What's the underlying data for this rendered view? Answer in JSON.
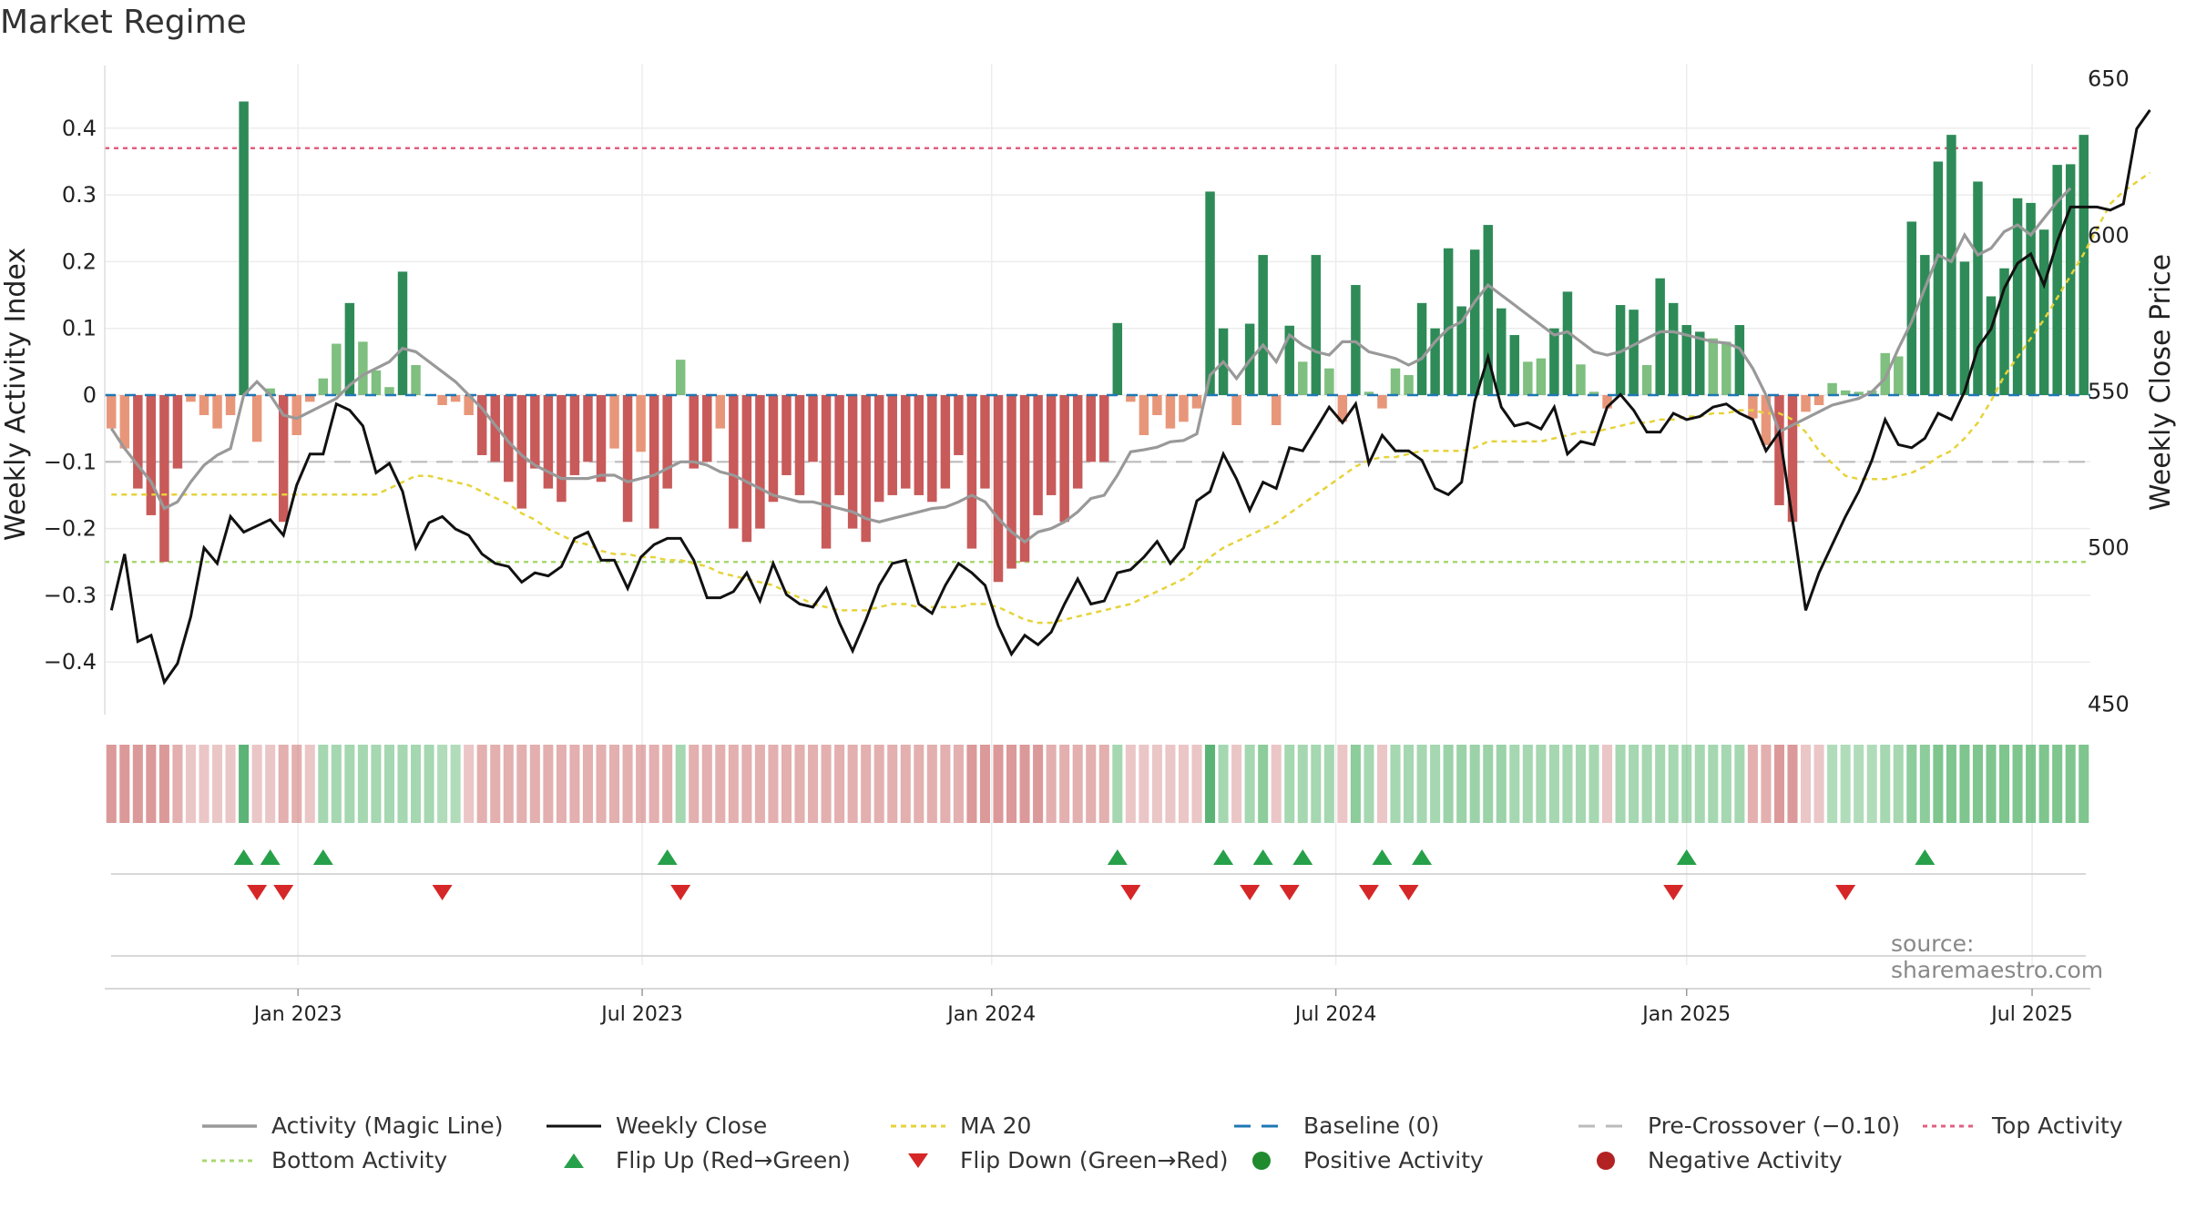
{
  "title": "Market Regime",
  "source": "source: sharemaestro.com",
  "colors": {
    "strong_green": "#2e8b57",
    "light_green": "#7fbf7f",
    "strong_red": "#c85a5a",
    "light_red": "#e8967a",
    "activity_line": "#999999",
    "close_line": "#111111",
    "ma20": "#e6d33a",
    "baseline": "#1f77b4",
    "pre_crossover": "#bbbbbb",
    "top_activity": "#e06080",
    "bottom_activity": "#a8d870",
    "flip_up": "#27a04a",
    "flip_down": "#d62728"
  },
  "chart_data": {
    "type": "bar",
    "ylabel_left": "Weekly Activity Index",
    "ylabel_right": "Weekly Close Price",
    "ylim_left": [
      -0.48,
      0.48
    ],
    "ylim_right": [
      450,
      650
    ],
    "yticks_left": [
      "0.4",
      "0.3",
      "0.2",
      "0.1",
      "0",
      "−0.1",
      "−0.2",
      "−0.3",
      "−0.4"
    ],
    "yticks_left_values": [
      0.4,
      0.3,
      0.2,
      0.1,
      0,
      -0.1,
      -0.2,
      -0.3,
      -0.4
    ],
    "yticks_right": [
      "650",
      "600",
      "550",
      "500",
      "450"
    ],
    "yticks_right_values": [
      650,
      600,
      550,
      500,
      450
    ],
    "xticks": [
      "Jan 2023",
      "Jul 2023",
      "Jan 2024",
      "Jul 2024",
      "Jan 2025",
      "Jul 2025"
    ],
    "xticks_week_index": [
      14.6,
      40.6,
      67,
      93,
      119.5,
      145.6
    ],
    "thresholds": {
      "top_activity": 0.37,
      "bottom_activity": -0.25,
      "pre_crossover": -0.1,
      "baseline": 0
    },
    "activity": [
      -0.05,
      -0.08,
      -0.14,
      -0.18,
      -0.25,
      -0.11,
      -0.01,
      -0.03,
      -0.05,
      -0.03,
      0.44,
      -0.07,
      0.01,
      -0.19,
      -0.06,
      -0.01,
      0.025,
      0.077,
      0.138,
      0.08,
      0.037,
      0.012,
      0.185,
      0.045,
      0.0,
      -0.015,
      -0.01,
      -0.03,
      -0.09,
      -0.1,
      -0.13,
      -0.17,
      -0.11,
      -0.14,
      -0.16,
      -0.12,
      -0.1,
      -0.13,
      -0.08,
      -0.19,
      -0.085,
      -0.2,
      -0.14,
      0.053,
      -0.11,
      -0.1,
      -0.05,
      -0.2,
      -0.22,
      -0.2,
      -0.16,
      -0.12,
      -0.15,
      -0.1,
      -0.23,
      -0.15,
      -0.2,
      -0.22,
      -0.16,
      -0.15,
      -0.14,
      -0.15,
      -0.16,
      -0.14,
      -0.09,
      -0.23,
      -0.14,
      -0.28,
      -0.26,
      -0.25,
      -0.18,
      -0.15,
      -0.19,
      -0.14,
      -0.1,
      -0.1,
      0.108,
      -0.01,
      -0.06,
      -0.03,
      -0.05,
      -0.04,
      -0.02,
      0.305,
      0.1,
      -0.045,
      0.107,
      0.21,
      -0.045,
      0.104,
      0.05,
      0.21,
      0.04,
      -0.04,
      0.165,
      0.005,
      -0.02,
      0.04,
      0.03,
      0.138,
      0.1,
      0.22,
      0.133,
      0.218,
      0.255,
      0.13,
      0.09,
      0.05,
      0.055,
      0.1,
      0.155,
      0.046,
      0.005,
      -0.02,
      0.135,
      0.128,
      0.045,
      0.175,
      0.138,
      0.105,
      0.095,
      0.085,
      0.08,
      0.105,
      -0.035,
      -0.075,
      -0.165,
      -0.19,
      -0.025,
      -0.015,
      0.018,
      0.007,
      0.005,
      0.007,
      0.063,
      0.058,
      0.26,
      0.21,
      0.35,
      0.39,
      0.2,
      0.32,
      0.148,
      0.19,
      0.295,
      0.288,
      0.248,
      0.345,
      0.346,
      0.39
    ],
    "activity_line": [
      -0.05,
      -0.08,
      -0.105,
      -0.13,
      -0.17,
      -0.16,
      -0.13,
      -0.105,
      -0.09,
      -0.08,
      -0.0,
      0.02,
      0.0,
      -0.03,
      -0.035,
      -0.025,
      -0.015,
      -0.005,
      0.015,
      0.03,
      0.04,
      0.05,
      0.07,
      0.065,
      0.05,
      0.035,
      0.02,
      0.0,
      -0.02,
      -0.045,
      -0.07,
      -0.09,
      -0.105,
      -0.115,
      -0.125,
      -0.125,
      -0.125,
      -0.12,
      -0.12,
      -0.13,
      -0.125,
      -0.12,
      -0.11,
      -0.1,
      -0.1,
      -0.105,
      -0.115,
      -0.12,
      -0.13,
      -0.14,
      -0.15,
      -0.155,
      -0.16,
      -0.16,
      -0.165,
      -0.17,
      -0.175,
      -0.185,
      -0.19,
      -0.185,
      -0.18,
      -0.175,
      -0.17,
      -0.168,
      -0.16,
      -0.15,
      -0.16,
      -0.185,
      -0.205,
      -0.22,
      -0.205,
      -0.2,
      -0.19,
      -0.175,
      -0.155,
      -0.15,
      -0.12,
      -0.085,
      -0.082,
      -0.078,
      -0.07,
      -0.068,
      -0.058,
      0.03,
      0.05,
      0.025,
      0.052,
      0.075,
      0.05,
      0.09,
      0.075,
      0.065,
      0.06,
      0.08,
      0.08,
      0.065,
      0.06,
      0.055,
      0.045,
      0.055,
      0.08,
      0.1,
      0.11,
      0.14,
      0.165,
      0.15,
      0.135,
      0.12,
      0.105,
      0.09,
      0.095,
      0.08,
      0.065,
      0.06,
      0.065,
      0.075,
      0.085,
      0.095,
      0.095,
      0.09,
      0.085,
      0.08,
      0.078,
      0.07,
      0.04,
      0.0,
      -0.055,
      -0.045,
      -0.035,
      -0.025,
      -0.015,
      -0.01,
      -0.005,
      0.005,
      0.025,
      0.07,
      0.11,
      0.16,
      0.21,
      0.2,
      0.24,
      0.21,
      0.22,
      0.245,
      0.255,
      0.24,
      0.265,
      0.29,
      0.31
    ],
    "weekly_close": [
      480,
      498,
      470,
      472,
      457,
      463,
      478,
      500,
      495,
      510,
      505,
      507,
      509,
      504,
      520,
      530,
      530,
      546,
      544,
      539,
      524,
      527,
      518,
      500,
      508,
      510,
      506,
      504,
      498,
      495,
      494,
      489,
      492,
      491,
      494,
      503,
      505,
      496,
      496,
      487,
      497,
      501,
      503,
      503,
      496,
      484,
      484,
      486,
      492,
      483,
      495,
      485,
      482,
      481,
      487,
      476,
      467,
      477,
      488,
      495,
      496,
      482,
      479,
      488,
      495,
      492,
      488,
      475,
      466,
      472,
      469,
      473,
      482,
      490,
      482,
      483,
      492,
      493,
      497,
      502,
      495,
      500,
      515,
      518,
      530,
      522,
      512,
      521,
      519,
      532,
      531,
      538,
      545,
      540,
      546,
      527,
      536,
      531,
      531,
      528,
      519,
      517,
      521,
      547,
      561,
      545,
      539,
      540,
      538,
      545,
      530,
      534,
      533,
      545,
      549,
      544,
      537,
      537,
      543,
      541,
      542,
      545,
      546,
      543,
      541,
      531,
      537,
      509,
      480,
      492,
      501,
      510,
      518,
      528,
      541,
      533,
      532,
      535,
      543,
      541,
      550,
      564,
      570,
      583,
      591,
      594,
      584,
      598,
      609,
      609,
      609,
      608,
      610,
      634,
      640
    ],
    "ma20": [
      517,
      517,
      517,
      517,
      517,
      517,
      517,
      517,
      517,
      517,
      517,
      517,
      517,
      517,
      517,
      517,
      517,
      517,
      517,
      517,
      517,
      519,
      521,
      523,
      523,
      522,
      521,
      520,
      518,
      516,
      514,
      511,
      509,
      506,
      504,
      502,
      501,
      499,
      498,
      498,
      497,
      497,
      496,
      496,
      495,
      494,
      492,
      491,
      490,
      489,
      488,
      486,
      484,
      482,
      481,
      480,
      480,
      480,
      481,
      482,
      482,
      481,
      481,
      481,
      481,
      482,
      482,
      481,
      479,
      477,
      476,
      476,
      477,
      478,
      479,
      480,
      481,
      482,
      484,
      486,
      488,
      490,
      493,
      497,
      500,
      502,
      504,
      506,
      508,
      511,
      514,
      517,
      520,
      523,
      526,
      528,
      529,
      529,
      530,
      531,
      531,
      531,
      531,
      532,
      534,
      534,
      534,
      534,
      534,
      535,
      536,
      537,
      537,
      538,
      539,
      540,
      540,
      541,
      541,
      542,
      542,
      543,
      543,
      544,
      544,
      543,
      543,
      541,
      537,
      531,
      527,
      523,
      522,
      522,
      522,
      523,
      524,
      526,
      529,
      531,
      535,
      540,
      547,
      555,
      561,
      567,
      573,
      580,
      587,
      594,
      602,
      610,
      614,
      617,
      620
    ],
    "regime_strips": [
      -1.5,
      -1.5,
      -1.5,
      -1.5,
      -1.5,
      -1,
      -0.5,
      -0.5,
      -0.5,
      -0.5,
      2.0,
      -0.5,
      -0.5,
      -1,
      -1,
      -0.5,
      1,
      1,
      1,
      1,
      1,
      1,
      1,
      1,
      1,
      0.8,
      0.8,
      -0.5,
      -1,
      -1,
      -1,
      -1,
      -1,
      -1,
      -1,
      -1,
      -1,
      -1,
      -1,
      -1,
      -1,
      -1,
      -1,
      1,
      -1,
      -1,
      -1,
      -1,
      -1,
      -1,
      -1,
      -1,
      -1,
      -1,
      -1,
      -1,
      -1,
      -1,
      -1,
      -1,
      -1,
      -1,
      -1,
      -1,
      -1,
      -1.5,
      -1.5,
      -1.5,
      -1.5,
      -1.5,
      -1.5,
      -1,
      -1,
      -1,
      -1,
      -1,
      1,
      -0.5,
      -0.5,
      -0.5,
      -0.5,
      -0.5,
      -0.5,
      2.0,
      1,
      -0.5,
      1,
      1.5,
      -0.5,
      1,
      1,
      1,
      1,
      -0.5,
      1.5,
      1,
      -0.5,
      1,
      1,
      1,
      1,
      1.2,
      1.2,
      1.2,
      1.2,
      1.2,
      1,
      1,
      1,
      1,
      1,
      1,
      1,
      -0.5,
      1,
      1,
      1,
      1,
      1,
      1,
      1,
      1,
      1,
      1,
      -1,
      -1,
      -1.5,
      -1.5,
      -0.5,
      -0.5,
      0.8,
      0.8,
      0.8,
      0.8,
      1,
      1,
      1.5,
      1.5,
      1.8,
      1.8,
      1.8,
      1.8,
      1.8,
      1.8,
      1.8,
      1.8,
      1.8,
      1.8,
      1.8,
      1.8
    ],
    "flip_up_weeks": [
      10,
      12,
      16,
      42,
      76,
      84,
      87,
      90,
      96,
      99,
      119,
      137
    ],
    "flip_down_weeks": [
      11,
      13,
      25,
      43,
      77,
      86,
      89,
      95,
      98,
      118,
      131
    ],
    "legend": [
      "Activity (Magic Line)",
      "Weekly Close",
      "MA 20",
      "Baseline (0)",
      "Pre-Crossover (−0.10)",
      "Top Activity",
      "Bottom Activity",
      "Flip Up (Red→Green)",
      "Flip Down (Green→Red)",
      "Positive Activity",
      "Negative Activity"
    ]
  }
}
